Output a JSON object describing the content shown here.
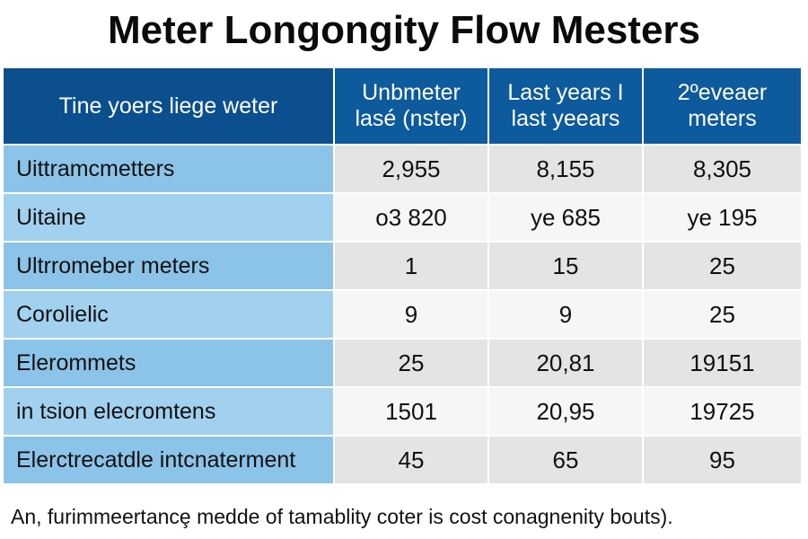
{
  "chart_data": {
    "type": "table",
    "title": "Meter Longongity Flow Mesters",
    "columns": [
      "Tine yoers liege weter",
      "Unbmeter lasé (nster)",
      "Last years I last yeears",
      "2ºeveaer meters"
    ],
    "rows": [
      {
        "label": "Uittramcmetters",
        "values": [
          "2,955",
          "8,155",
          "8,305"
        ]
      },
      {
        "label": "Uitaine",
        "values": [
          "o3 820",
          "ye 685",
          "ye 195"
        ]
      },
      {
        "label": "Ultrromeber meters",
        "values": [
          "1",
          "15",
          "25"
        ]
      },
      {
        "label": "Corolielic",
        "values": [
          "9",
          "9",
          "25"
        ]
      },
      {
        "label": "Elerommets",
        "values": [
          "25",
          "20,81",
          "19151"
        ]
      },
      {
        "label": "in tsion elecromtens",
        "values": [
          "1501",
          "20,95",
          "19725"
        ]
      },
      {
        "label": "Elerctrecatdle intcnaterment",
        "values": [
          "45",
          "65",
          "95"
        ]
      }
    ],
    "caption": "An, furimmeertancȩ medde of tamablity coter is cost conagnenity bouts)."
  },
  "colors": {
    "header_bg": "#0d5a9c",
    "label_bg": "#8ec4e8",
    "value_bg": "#e4e4e4"
  }
}
